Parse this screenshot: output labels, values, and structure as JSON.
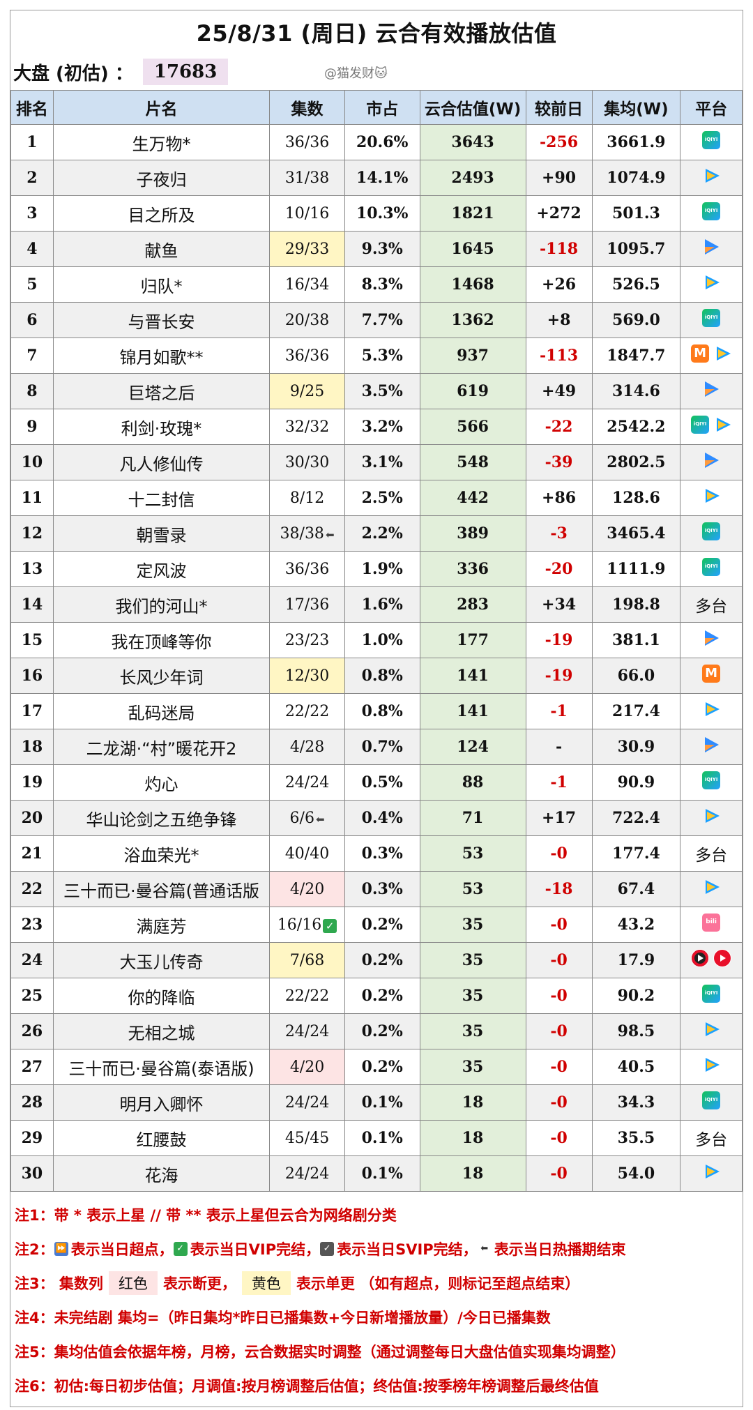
{
  "header": {
    "title": "25/8/31 (周日) 云合有效播放估值",
    "total_label": "大盘 (初估) ：",
    "total_value": "17683",
    "watermark": "@猫发财🐱"
  },
  "columns": [
    "排名",
    "片名",
    "集数",
    "市占",
    "云合估值(W)",
    "较前日",
    "集均(W)",
    "平台"
  ],
  "rows": [
    {
      "rank": "1",
      "name": "生万物*",
      "eps": "36/36",
      "share": "20.6%",
      "yunhe": "3643",
      "change": "-256",
      "avg": "3661.9",
      "platforms": [
        "iqiyi"
      ]
    },
    {
      "rank": "2",
      "name": "子夜归",
      "eps": "31/38",
      "share": "14.1%",
      "yunhe": "2493",
      "change": "+90",
      "avg": "1074.9",
      "platforms": [
        "tencent"
      ]
    },
    {
      "rank": "3",
      "name": "目之所及",
      "eps": "10/16",
      "share": "10.3%",
      "yunhe": "1821",
      "change": "+272",
      "avg": "501.3",
      "platforms": [
        "iqiyi"
      ]
    },
    {
      "rank": "4",
      "name": "献鱼",
      "eps": "29/33",
      "share": "9.3%",
      "yunhe": "1645",
      "change": "-118",
      "avg": "1095.7",
      "platforms": [
        "youku"
      ],
      "eps_hl": "y"
    },
    {
      "rank": "5",
      "name": "归队*",
      "eps": "16/34",
      "share": "8.3%",
      "yunhe": "1468",
      "change": "+26",
      "avg": "526.5",
      "platforms": [
        "tencent"
      ]
    },
    {
      "rank": "6",
      "name": "与晋长安",
      "eps": "20/38",
      "share": "7.7%",
      "yunhe": "1362",
      "change": "+8",
      "avg": "569.0",
      "platforms": [
        "iqiyi"
      ]
    },
    {
      "rank": "7",
      "name": "锦月如歌**",
      "eps": "36/36",
      "share": "5.3%",
      "yunhe": "937",
      "change": "-113",
      "avg": "1847.7",
      "platforms": [
        "mango",
        "tencent"
      ]
    },
    {
      "rank": "8",
      "name": "巨塔之后",
      "eps": "9/25",
      "share": "3.5%",
      "yunhe": "619",
      "change": "+49",
      "avg": "314.6",
      "platforms": [
        "youku"
      ],
      "eps_hl": "y"
    },
    {
      "rank": "9",
      "name": "利剑·玫瑰*",
      "eps": "32/32",
      "share": "3.2%",
      "yunhe": "566",
      "change": "-22",
      "avg": "2542.2",
      "platforms": [
        "iqiyi",
        "tencent"
      ]
    },
    {
      "rank": "10",
      "name": "凡人修仙传",
      "eps": "30/30",
      "share": "3.1%",
      "yunhe": "548",
      "change": "-39",
      "avg": "2802.5",
      "platforms": [
        "youku"
      ]
    },
    {
      "rank": "11",
      "name": "十二封信",
      "eps": "8/12",
      "share": "2.5%",
      "yunhe": "442",
      "change": "+86",
      "avg": "128.6",
      "platforms": [
        "tencent"
      ]
    },
    {
      "rank": "12",
      "name": "朝雪录",
      "eps": "38/38",
      "share": "2.2%",
      "yunhe": "389",
      "change": "-3",
      "avg": "3465.4",
      "platforms": [
        "iqiyi"
      ],
      "mark": "end"
    },
    {
      "rank": "13",
      "name": "定风波",
      "eps": "36/36",
      "share": "1.9%",
      "yunhe": "336",
      "change": "-20",
      "avg": "1111.9",
      "platforms": [
        "iqiyi"
      ]
    },
    {
      "rank": "14",
      "name": "我们的河山*",
      "eps": "17/36",
      "share": "1.6%",
      "yunhe": "283",
      "change": "+34",
      "avg": "198.8",
      "platforms": [],
      "platform_text": "多台"
    },
    {
      "rank": "15",
      "name": "我在顶峰等你",
      "eps": "23/23",
      "share": "1.0%",
      "yunhe": "177",
      "change": "-19",
      "avg": "381.1",
      "platforms": [
        "youku"
      ]
    },
    {
      "rank": "16",
      "name": "长风少年词",
      "eps": "12/30",
      "share": "0.8%",
      "yunhe": "141",
      "change": "-19",
      "avg": "66.0",
      "platforms": [
        "mango"
      ],
      "eps_hl": "y"
    },
    {
      "rank": "17",
      "name": "乱码迷局",
      "eps": "22/22",
      "share": "0.8%",
      "yunhe": "141",
      "change": "-1",
      "avg": "217.4",
      "platforms": [
        "tencent"
      ]
    },
    {
      "rank": "18",
      "name": "二龙湖·“村”暖花开2",
      "eps": "4/28",
      "share": "0.7%",
      "yunhe": "124",
      "change": "-",
      "avg": "30.9",
      "platforms": [
        "youku"
      ]
    },
    {
      "rank": "19",
      "name": "灼心",
      "eps": "24/24",
      "share": "0.5%",
      "yunhe": "88",
      "change": "-1",
      "avg": "90.9",
      "platforms": [
        "iqiyi"
      ]
    },
    {
      "rank": "20",
      "name": "华山论剑之五绝争锋",
      "eps": "6/6",
      "share": "0.4%",
      "yunhe": "71",
      "change": "+17",
      "avg": "722.4",
      "platforms": [
        "tencent"
      ],
      "mark": "end"
    },
    {
      "rank": "21",
      "name": "浴血荣光*",
      "eps": "40/40",
      "share": "0.3%",
      "yunhe": "53",
      "change": "-0",
      "avg": "177.4",
      "platforms": [],
      "platform_text": "多台"
    },
    {
      "rank": "22",
      "name": "三十而已·曼谷篇(普通话版",
      "eps": "4/20",
      "share": "0.3%",
      "yunhe": "53",
      "change": "-18",
      "avg": "67.4",
      "platforms": [
        "tencent"
      ],
      "eps_hl": "r"
    },
    {
      "rank": "23",
      "name": "满庭芳",
      "eps": "16/16",
      "share": "0.2%",
      "yunhe": "35",
      "change": "-0",
      "avg": "43.2",
      "platforms": [
        "bili"
      ],
      "mark": "vip"
    },
    {
      "rank": "24",
      "name": "大玉儿传奇",
      "eps": "7/68",
      "share": "0.2%",
      "yunhe": "35",
      "change": "-0",
      "avg": "17.9",
      "platforms": [
        "red-dark",
        "red"
      ],
      "eps_hl": "y"
    },
    {
      "rank": "25",
      "name": "你的降临",
      "eps": "22/22",
      "share": "0.2%",
      "yunhe": "35",
      "change": "-0",
      "avg": "90.2",
      "platforms": [
        "iqiyi"
      ]
    },
    {
      "rank": "26",
      "name": "无相之城",
      "eps": "24/24",
      "share": "0.2%",
      "yunhe": "35",
      "change": "-0",
      "avg": "98.5",
      "platforms": [
        "tencent"
      ]
    },
    {
      "rank": "27",
      "name": "三十而已·曼谷篇(泰语版)",
      "eps": "4/20",
      "share": "0.2%",
      "yunhe": "35",
      "change": "-0",
      "avg": "40.5",
      "platforms": [
        "tencent"
      ],
      "eps_hl": "r"
    },
    {
      "rank": "28",
      "name": "明月入卿怀",
      "eps": "24/24",
      "share": "0.1%",
      "yunhe": "18",
      "change": "-0",
      "avg": "34.3",
      "platforms": [
        "iqiyi"
      ]
    },
    {
      "rank": "29",
      "name": "红腰鼓",
      "eps": "45/45",
      "share": "0.1%",
      "yunhe": "18",
      "change": "-0",
      "avg": "35.5",
      "platforms": [],
      "platform_text": "多台"
    },
    {
      "rank": "30",
      "name": "花海",
      "eps": "24/24",
      "share": "0.1%",
      "yunhe": "18",
      "change": "-0",
      "avg": "54.0",
      "platforms": [
        "tencent"
      ]
    }
  ],
  "notes": {
    "n1": "注1：带 * 表示上星 // 带 ** 表示上星但云合为网络剧分类",
    "n2_prefix": "注2：",
    "n2_a": "表示当日超点，",
    "n2_b": "表示当日VIP完结，",
    "n2_c": "表示当日SVIP完结，",
    "n2_d": "表示当日热播期结束",
    "n3_prefix": "注3：  集数列",
    "n3_red": "红色",
    "n3_mid": "表示断更，",
    "n3_yellow": "黄色",
    "n3_suffix": "表示单更 （如有超点，则标记至超点结束）",
    "n4": "注4：未完结剧 集均=（昨日集均*昨日已播集数+今日新增播放量）/今日已播集数",
    "n5": "注5：集均估值会依据年榜，月榜，云合数据实时调整（通过调整每日大盘估值实现集均调整）",
    "n6": "注6：初估:每日初步估值；月调值:按月榜调整后估值；终估值:按季榜年榜调整后最终估值"
  },
  "colors": {
    "header_bg": "#cfe0f2",
    "yunhe_col_bg": "#e2efda",
    "negative": "#d00000",
    "note_text": "#d00000",
    "highlight_yellow": "#fff6c4",
    "highlight_red": "#fde4e4",
    "total_bg": "#efe0ef"
  }
}
